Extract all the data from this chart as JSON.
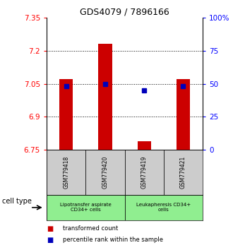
{
  "title": "GDS4079 / 7896166",
  "samples": [
    "GSM779418",
    "GSM779420",
    "GSM779419",
    "GSM779421"
  ],
  "red_values": [
    7.07,
    7.23,
    6.79,
    7.07
  ],
  "blue_values": [
    7.04,
    7.05,
    7.02,
    7.04
  ],
  "ymin": 6.75,
  "ymax": 7.35,
  "yticks_left": [
    7.35,
    7.2,
    7.05,
    6.9,
    6.75
  ],
  "yticks_right_labels": [
    "100%",
    "75",
    "50",
    "25",
    "0"
  ],
  "yticks_right_pct": [
    100,
    75,
    50,
    25,
    0
  ],
  "cell_type_label": "cell type",
  "legend_red": "transformed count",
  "legend_blue": "percentile rank within the sample",
  "red_color": "#cc0000",
  "blue_color": "#0000bb",
  "bar_width": 0.35,
  "grid_lines": [
    7.2,
    7.05,
    6.9
  ],
  "group1_label": "Lipotransfer aspirate\nCD34+ cells",
  "group2_label": "Leukapheresis CD34+\ncells",
  "cell_color": "#90EE90",
  "sample_box_color": "#cccccc"
}
